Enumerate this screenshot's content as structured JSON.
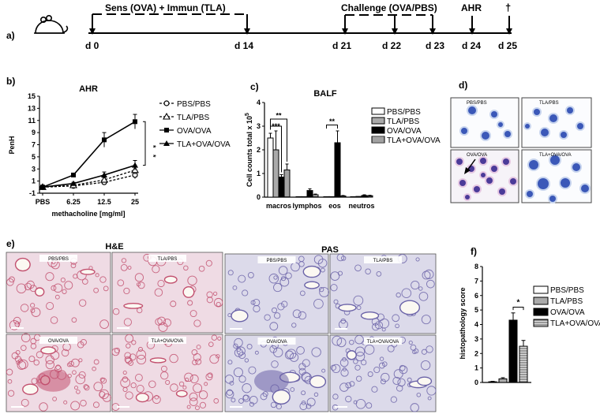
{
  "panel_a": {
    "label": "a)",
    "phases": [
      {
        "text": "Sens (OVA) + Immun (TLA)"
      },
      {
        "text": "Challenge (OVA/PBS)"
      },
      {
        "text": "AHR"
      },
      {
        "text": "†"
      }
    ],
    "days": [
      "d 0",
      "d 14",
      "d 21",
      "d 22",
      "d 23",
      "d 24",
      "d 25"
    ]
  },
  "panel_b": {
    "label": "b)"
  },
  "panel_c": {
    "label": "c)"
  },
  "panel_d": {
    "label": "d)",
    "images": [
      "PBS/PBS",
      "TLA/PBS",
      "OVA/OVA",
      "TLA+OVA/OVA"
    ]
  },
  "panel_e": {
    "label": "e)",
    "he_title": "H&E",
    "pas_title": "PAS",
    "images": [
      "PBS/PBS",
      "TLA/PBS",
      "OVA/OVA",
      "TLA+OVA/OVA"
    ]
  },
  "panel_f": {
    "label": "f)"
  },
  "colors": {
    "he": "#c2506f",
    "he_light": "#efdbe4",
    "pas": "#6b63a8",
    "pas_light": "#dcdaea",
    "cell": "#3b58b8"
  },
  "chart_data": [
    {
      "id": "b",
      "type": "line",
      "title": "AHR",
      "xlabel": "methacholine [mg/ml]",
      "ylabel": "PenH",
      "categories": [
        "PBS",
        "6.25",
        "12.5",
        "25"
      ],
      "yticks": [
        "-1",
        "1",
        "3",
        "5",
        "7",
        "9",
        "11",
        "13",
        "15"
      ],
      "ylim": [
        -1,
        15
      ],
      "series": [
        {
          "name": "PBS/PBS",
          "marker": "open-circle",
          "dash": true,
          "values": [
            0,
            0.2,
            0.8,
            2.0
          ],
          "err": [
            0.2,
            0.2,
            0.3,
            0.6
          ]
        },
        {
          "name": "TLA/PBS",
          "marker": "open-triangle",
          "dash": true,
          "values": [
            0,
            0.3,
            1.2,
            2.8
          ],
          "err": [
            0.2,
            0.2,
            0.4,
            0.7
          ]
        },
        {
          "name": "OVA/OVA",
          "marker": "filled-square",
          "dash": false,
          "values": [
            0,
            2.0,
            7.8,
            10.8
          ],
          "err": [
            0.2,
            0.3,
            1.2,
            1.2
          ]
        },
        {
          "name": "TLA+OVA/OVA",
          "marker": "filled-triangle",
          "dash": false,
          "values": [
            0,
            0.6,
            2.0,
            3.6
          ],
          "err": [
            0.2,
            0.2,
            0.5,
            0.8
          ]
        }
      ],
      "significance": [
        "*",
        "*"
      ],
      "legend": "right"
    },
    {
      "id": "c",
      "type": "bar",
      "title": "BALF",
      "ylabel": "Cell counts total x 10^5",
      "ylabel_text": "Cell counts total",
      "ylabel_unit": "x 10",
      "ylabel_exp": "5",
      "categories": [
        "macros",
        "lymphos",
        "eos",
        "neutros"
      ],
      "yticks": [
        "0",
        "1",
        "2",
        "3",
        "4"
      ],
      "ylim": [
        0,
        4
      ],
      "series": [
        {
          "name": "PBS/PBS",
          "fill": "white",
          "values": [
            2.5,
            0.02,
            0.02,
            0.02
          ],
          "err": [
            0.2,
            0.01,
            0.01,
            0.01
          ]
        },
        {
          "name": "TLA/PBS",
          "fill": "grey",
          "values": [
            2.0,
            0.02,
            0.02,
            0.03
          ],
          "err": [
            0.8,
            0.01,
            0.01,
            0.01
          ]
        },
        {
          "name": "OVA/OVA",
          "fill": "black",
          "values": [
            0.85,
            0.28,
            2.3,
            0.07
          ],
          "err": [
            0.1,
            0.07,
            0.5,
            0.03
          ]
        },
        {
          "name": "TLA+OVA/OVA",
          "fill": "hatched",
          "values": [
            1.15,
            0.1,
            0.05,
            0.06
          ],
          "err": [
            0.25,
            0.03,
            0.02,
            0.02
          ]
        }
      ],
      "significance": [
        "**",
        "***",
        "**"
      ],
      "legend": "right"
    },
    {
      "id": "f",
      "type": "bar",
      "ylabel": "histopathology score",
      "categories": [
        "PBS/PBS",
        "TLA/PBS",
        "OVA/OVA",
        "TLA+OVA/OVA"
      ],
      "yticks": [
        "0",
        "1",
        "2",
        "3",
        "4",
        "5",
        "6",
        "7",
        "8"
      ],
      "ylim": [
        0,
        8
      ],
      "values": [
        0.05,
        0.25,
        4.3,
        2.5
      ],
      "err": [
        0.03,
        0.08,
        0.5,
        0.4
      ],
      "significance": [
        "*"
      ],
      "legend": "right"
    }
  ]
}
